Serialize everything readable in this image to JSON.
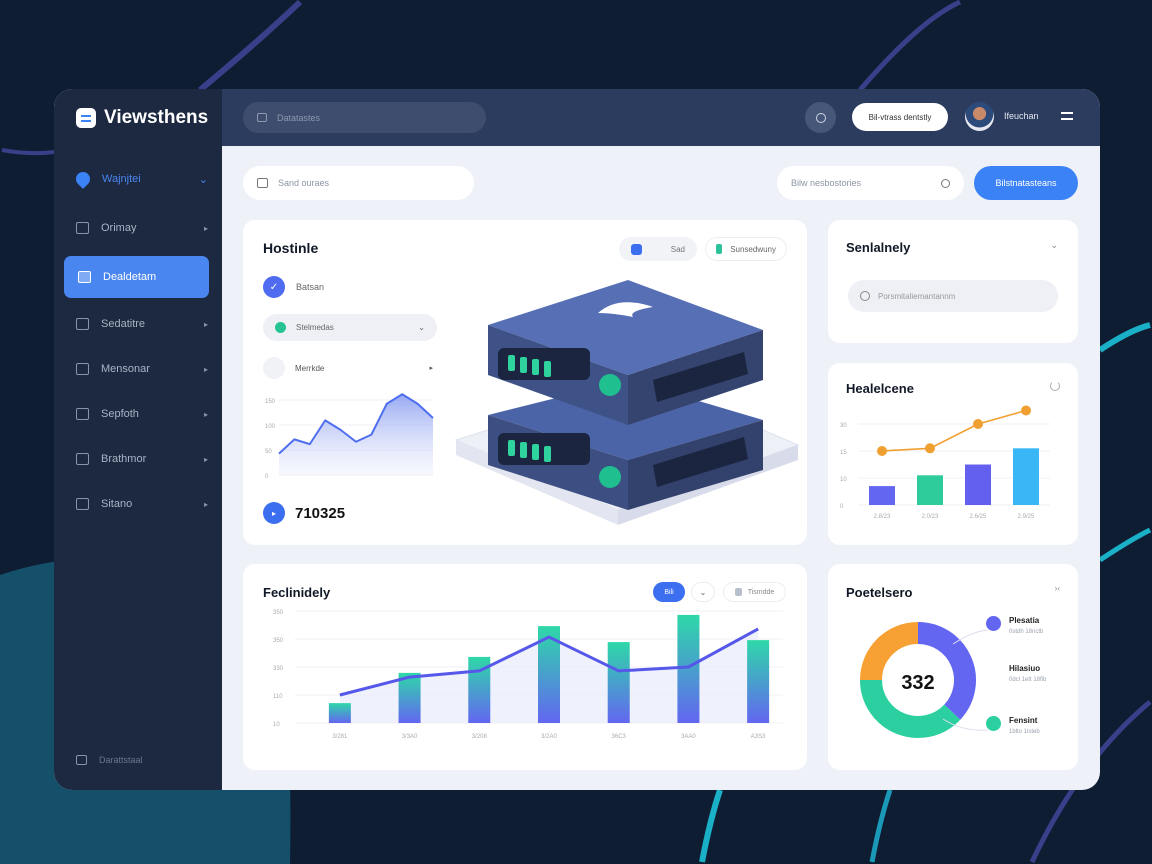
{
  "app": {
    "name": "Viewsthens"
  },
  "topbar": {
    "search_placeholder": "Datatastes",
    "action_button": "Bil-vtrass dentstly",
    "user_name": "Ifeuchan"
  },
  "sidebar": {
    "section": {
      "label": "Wajnjtei"
    },
    "items": [
      {
        "label": "Orimay",
        "icon": "chart-icon"
      },
      {
        "label": "Dealdetam",
        "icon": "server-icon",
        "active": true
      },
      {
        "label": "Sedatitre",
        "icon": "monitor-icon"
      },
      {
        "label": "Mensonar",
        "icon": "upload-icon"
      },
      {
        "label": "Sepfoth",
        "icon": "calendar-icon"
      },
      {
        "label": "Brathmor",
        "icon": "message-icon"
      },
      {
        "label": "Sitano",
        "icon": "document-icon"
      }
    ],
    "footer": "Darattstaal"
  },
  "toolbar": {
    "left_search_placeholder": "Sand ouraes",
    "right_search_placeholder": "Bilw nesbostories",
    "primary_button": "Bilstnatasteans"
  },
  "hosting_card": {
    "title": "Hostinle",
    "chip_1": "Sad",
    "chip_2": "Sunsedwuny",
    "check_label": "Batsan",
    "select_label": "Stelmedas",
    "option_label": "Merrkde",
    "total": "710325",
    "chart_ticks": [
      "0",
      "50",
      "100",
      "150"
    ],
    "chart_data": {
      "type": "area",
      "values": [
        0.9,
        1.5,
        1.3,
        2.3,
        1.9,
        1.4,
        1.7,
        3.0,
        3.4,
        3.0,
        2.4
      ],
      "ylim": [
        0,
        4
      ]
    }
  },
  "search_card": {
    "title": "Senlalnely",
    "search_placeholder": "Porsmitaliemantannm"
  },
  "bar_line_card": {
    "title": "Healelcene",
    "chart_data": {
      "type": "bar",
      "categories": [
        "2.8/23",
        "2.0/23",
        "2.6/25",
        "2.9/25"
      ],
      "values": [
        0.7,
        1.1,
        1.5,
        2.1
      ],
      "line": [
        2.0,
        2.1,
        3.0,
        3.5
      ],
      "ylim": [
        0,
        4
      ],
      "ticks": [
        "0",
        "10",
        "15",
        "30"
      ],
      "bar_colors": [
        "#6366f1",
        "#2ecc9b",
        "#6360f0",
        "#38b6f5"
      ],
      "line_color": "#f0a030"
    }
  },
  "combo_card": {
    "title": "Feclinidely",
    "chip_active": "Bili",
    "chip_2": "Tismdde",
    "chart_data": {
      "type": "bar",
      "categories": [
        "3/281",
        "3/3A0",
        "3/208",
        "3/2A0",
        "36C3",
        "3AA0",
        "A3S3"
      ],
      "values": [
        0.71,
        1.79,
        2.36,
        3.46,
        2.89,
        3.86,
        2.96
      ],
      "line": [
        1.0,
        1.64,
        1.86,
        3.07,
        1.86,
        2.0,
        3.36
      ],
      "ylim": [
        0,
        4
      ],
      "ticks": [
        "10",
        "110",
        "330",
        "350",
        "350"
      ]
    }
  },
  "donut_card": {
    "title": "Poetelsero",
    "center_value": "332",
    "chart_data": {
      "type": "pie",
      "slices": [
        {
          "label": "Plesatia",
          "sub": "0stdh 18nctb",
          "value": 37,
          "color": "#6366f1"
        },
        {
          "label": "Fensint",
          "sub": "1blto 1lsteb",
          "value": 38,
          "color": "#2ccf9f"
        },
        {
          "label": "Hilasiuo",
          "sub": "0dcl 1ett 18fib",
          "value": 25,
          "color": "#f7a033"
        }
      ]
    }
  },
  "colors": {
    "accent": "#3b82f6",
    "sidebar": "#1c2940",
    "topbar": "#2c3c5e"
  }
}
